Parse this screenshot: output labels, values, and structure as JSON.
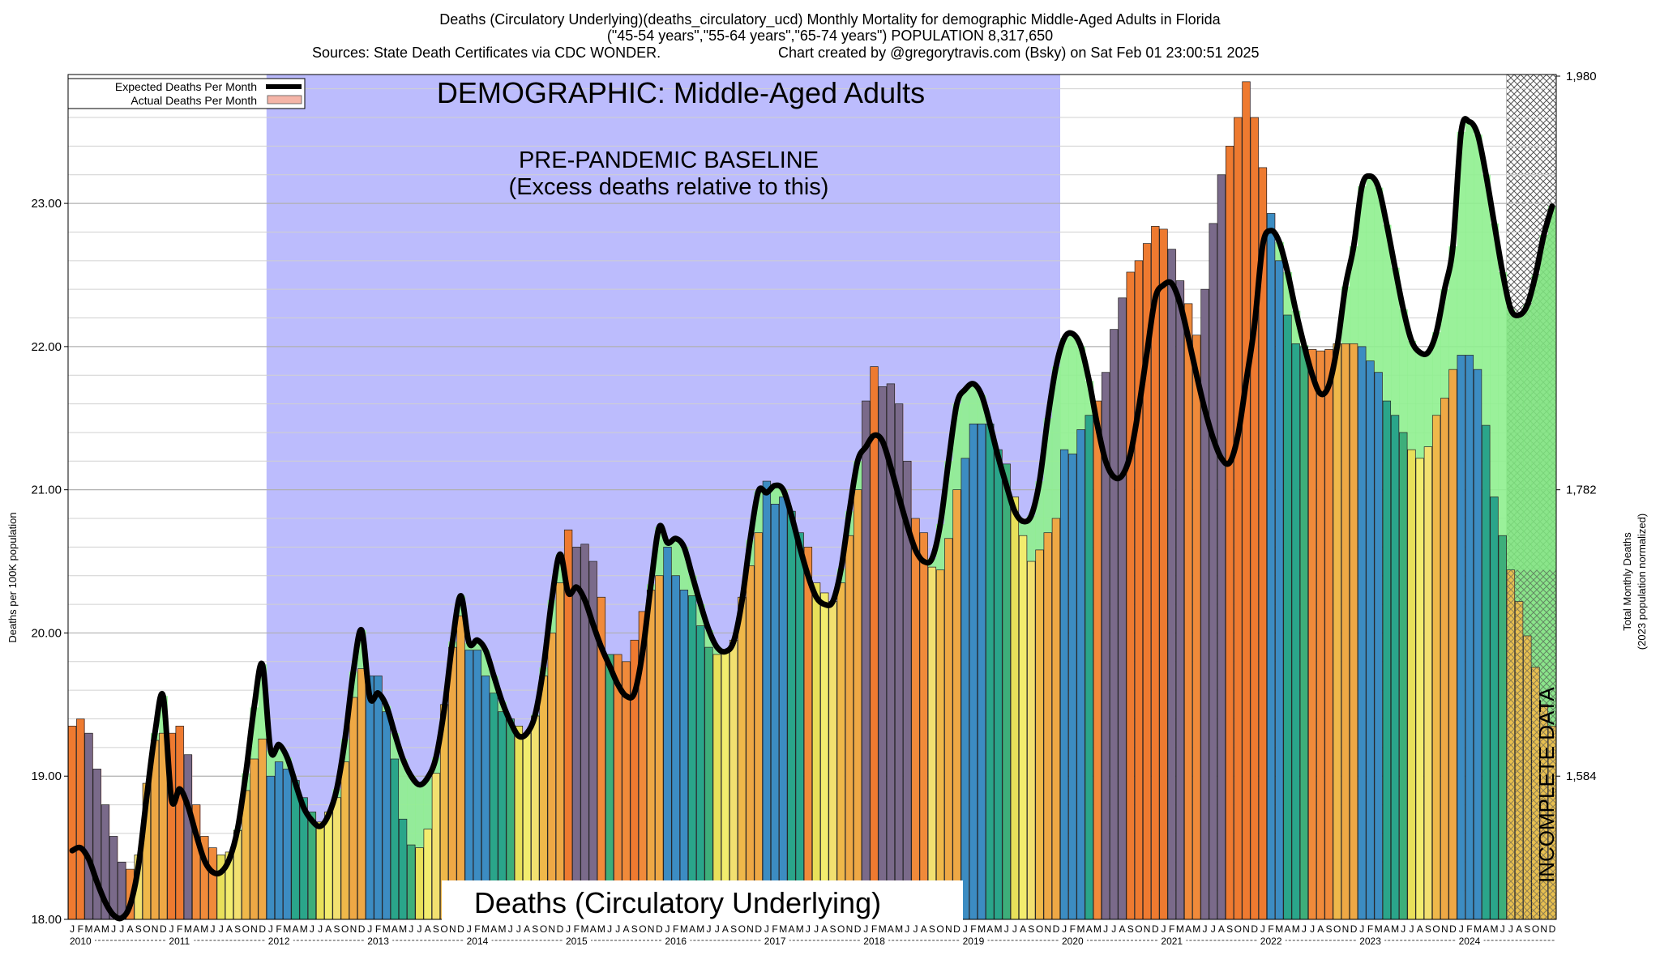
{
  "chart_data": {
    "type": "bar",
    "title": "Deaths (Circulatory Underlying)(deaths_circulatory_ucd) Monthly Mortality for demographic Middle-Aged Adults in Florida",
    "subtitle": "(\"45-54 years\",\"55-64 years\",\"65-74 years\") POPULATION 8,317,650",
    "sources": "Sources: State Death Certificates via CDC WONDER.",
    "credit": "Chart created by @gregorytravis.com (Bsky) on Sat Feb 01 23:00:51 2025",
    "demographic_label": "DEMOGRAPHIC: Middle-Aged Adults",
    "baseline_label_1": "PRE-PANDEMIC BASELINE",
    "baseline_label_2": "(Excess deaths relative to this)",
    "bottom_label": "Deaths (Circulatory Underlying)",
    "incomplete_label": "INCOMPLETE DATA",
    "ylabel": "Deaths per 100K population",
    "ylabel_right": "Total Monthly Deaths",
    "ylabel_right_2": "(2023 population normalized)",
    "ylim": [
      18.0,
      23.9
    ],
    "yticks": [
      "18.00",
      "19.00",
      "20.00",
      "21.00",
      "22.00",
      "23.00"
    ],
    "yticks_right": [
      "1,584",
      "1,782",
      "1,980"
    ],
    "legend": [
      "Expected Deaths Per Month",
      "Actual Deaths Per Month"
    ],
    "legend_position": "top-left",
    "month_letters": [
      "J",
      "F",
      "M",
      "A",
      "M",
      "J",
      "J",
      "A",
      "S",
      "O",
      "N",
      "D"
    ],
    "years": [
      "2010",
      "2011",
      "2012",
      "2013",
      "2014",
      "2015",
      "2016",
      "2017",
      "2018",
      "2019",
      "2020",
      "2021",
      "2022",
      "2023",
      "2024"
    ],
    "baseline_period": [
      "2012-01",
      "2019-12"
    ],
    "incomplete_period": [
      "2024-07",
      "2024-12"
    ],
    "actual": [
      19.35,
      19.4,
      19.3,
      19.05,
      18.8,
      18.58,
      18.4,
      18.35,
      18.45,
      18.95,
      19.25,
      19.3,
      19.3,
      19.35,
      19.15,
      18.8,
      18.58,
      18.5,
      18.45,
      18.47,
      18.62,
      18.9,
      19.12,
      19.26,
      19.0,
      19.1,
      19.05,
      18.97,
      18.85,
      18.75,
      18.68,
      18.75,
      18.85,
      19.1,
      19.55,
      19.75,
      19.7,
      19.7,
      19.45,
      19.12,
      18.7,
      18.52,
      18.5,
      18.63,
      19.02,
      19.5,
      19.9,
      20.12,
      19.88,
      19.88,
      19.7,
      19.58,
      19.45,
      19.4,
      19.35,
      19.3,
      19.42,
      19.7,
      20.0,
      20.35,
      20.72,
      20.6,
      20.62,
      20.5,
      20.25,
      19.85,
      19.85,
      19.8,
      19.95,
      20.15,
      20.3,
      20.4,
      20.6,
      20.4,
      20.3,
      20.26,
      20.05,
      19.9,
      19.85,
      19.88,
      19.95,
      20.25,
      20.47,
      20.7,
      21.06,
      20.9,
      20.95,
      20.85,
      20.7,
      20.6,
      20.35,
      20.28,
      20.22,
      20.35,
      20.68,
      21.0,
      21.62,
      21.86,
      21.72,
      21.74,
      21.6,
      21.2,
      20.8,
      20.7,
      20.46,
      20.44,
      20.66,
      21.0,
      21.22,
      21.46,
      21.46,
      21.46,
      21.28,
      21.18,
      20.95,
      20.68,
      20.5,
      20.58,
      20.7,
      20.8,
      21.28,
      21.25,
      21.42,
      21.52,
      21.62,
      21.82,
      22.12,
      22.34,
      22.52,
      22.6,
      22.72,
      22.84,
      22.82,
      22.68,
      22.46,
      22.3,
      22.08,
      22.4,
      22.86,
      23.2,
      23.4,
      23.6,
      23.85,
      23.6,
      23.25,
      22.93,
      22.6,
      22.22,
      22.02,
      22.0,
      21.98,
      21.97,
      21.98,
      22.02,
      22.02,
      22.02,
      22.0,
      21.9,
      21.82,
      21.62,
      21.52,
      21.4,
      21.28,
      21.22,
      21.3,
      21.52,
      21.64,
      21.84,
      21.94,
      21.94,
      21.84,
      21.45,
      20.95,
      20.68,
      20.44,
      20.22,
      19.98,
      19.76,
      19.5,
      19.35
    ],
    "expected": [
      18.48,
      18.5,
      18.42,
      18.26,
      18.12,
      18.03,
      18.01,
      18.1,
      18.37,
      18.85,
      19.3,
      19.56,
      18.84,
      18.91,
      18.79,
      18.59,
      18.41,
      18.33,
      18.33,
      18.42,
      18.63,
      19.02,
      19.48,
      19.78,
      19.18,
      19.22,
      19.13,
      18.95,
      18.78,
      18.69,
      18.65,
      18.73,
      18.91,
      19.26,
      19.73,
      20.02,
      19.55,
      19.58,
      19.49,
      19.3,
      19.12,
      19.0,
      18.94,
      18.99,
      19.13,
      19.47,
      19.94,
      20.26,
      19.93,
      19.95,
      19.88,
      19.7,
      19.52,
      19.38,
      19.28,
      19.3,
      19.43,
      19.76,
      20.23,
      20.55,
      20.28,
      20.32,
      20.23,
      20.06,
      19.9,
      19.77,
      19.64,
      19.56,
      19.58,
      19.87,
      20.34,
      20.74,
      20.63,
      20.66,
      20.6,
      20.4,
      20.2,
      20.02,
      19.9,
      19.87,
      19.94,
      20.22,
      20.65,
      20.99,
      20.98,
      21.03,
      21.0,
      20.82,
      20.6,
      20.4,
      20.25,
      20.2,
      20.22,
      20.45,
      20.85,
      21.2,
      21.3,
      21.38,
      21.34,
      21.16,
      20.95,
      20.75,
      20.58,
      20.5,
      20.52,
      20.76,
      21.2,
      21.6,
      21.7,
      21.74,
      21.66,
      21.46,
      21.23,
      21.03,
      20.85,
      20.78,
      20.82,
      21.06,
      21.5,
      21.86,
      22.06,
      22.09,
      22.0,
      21.76,
      21.45,
      21.2,
      21.09,
      21.1,
      21.25,
      21.57,
      21.96,
      22.34,
      22.43,
      22.44,
      22.3,
      22.06,
      21.8,
      21.56,
      21.36,
      21.22,
      21.19,
      21.38,
      21.76,
      22.15,
      22.71,
      22.81,
      22.73,
      22.52,
      22.25,
      22.01,
      21.8,
      21.67,
      21.73,
      22.0,
      22.42,
      22.7,
      23.12,
      23.19,
      23.11,
      22.85,
      22.55,
      22.26,
      22.04,
      21.96,
      21.96,
      22.1,
      22.4,
      22.7,
      23.5,
      23.57,
      23.48,
      23.2,
      22.86,
      22.52,
      22.26,
      22.22,
      22.29,
      22.5,
      22.78,
      22.98
    ]
  }
}
